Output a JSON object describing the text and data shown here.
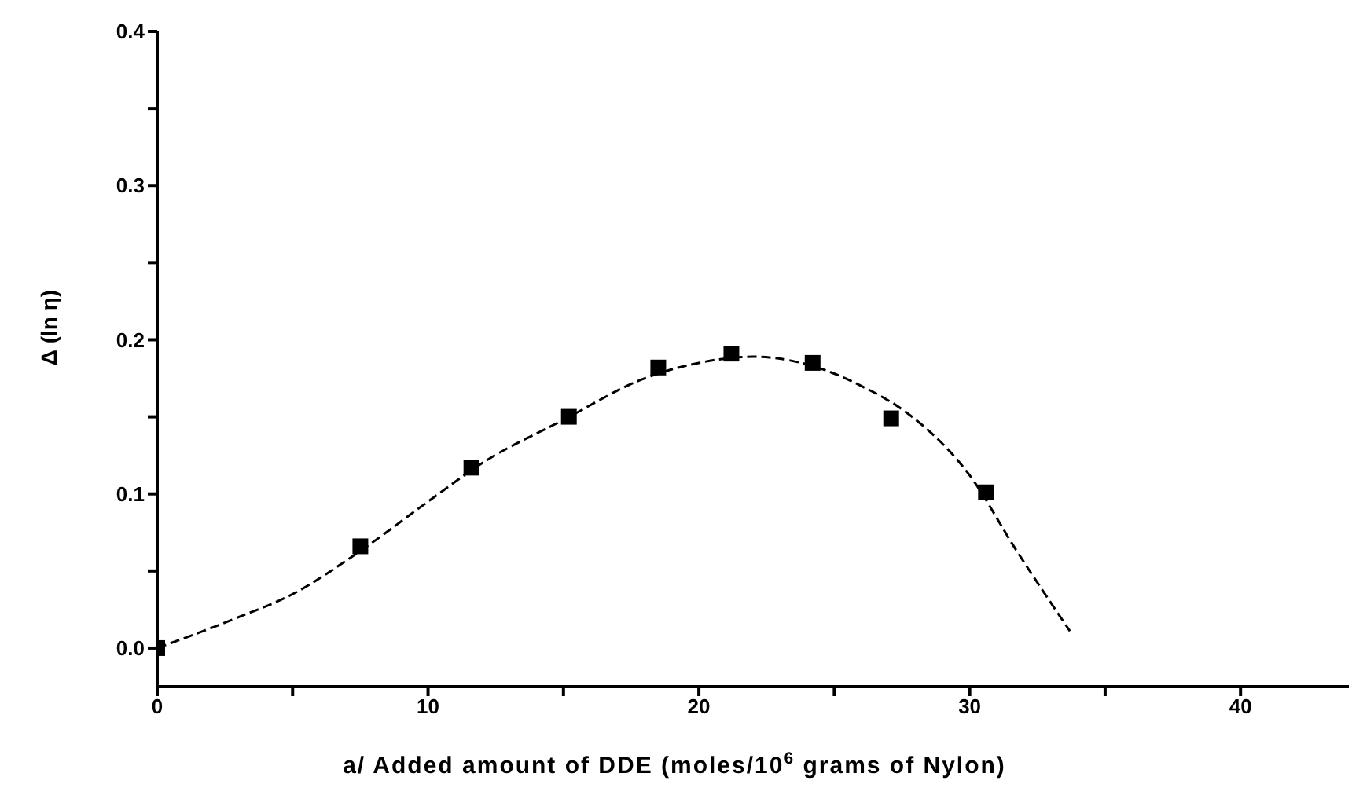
{
  "chart_data": {
    "type": "scatter",
    "xlabel": "a/ Added amount of DDE (moles/10$^{6}$ grams of Nylon)",
    "ylabel": "Δ (ln η)",
    "xlim": [
      0,
      44
    ],
    "xticks": [
      0,
      {
        "value": 5,
        "label": null
      },
      10,
      {
        "value": 15,
        "label": null
      },
      20,
      {
        "value": 25,
        "label": null
      },
      30,
      {
        "value": 35,
        "label": null
      },
      40
    ],
    "ylim": [
      -0.025,
      0.4
    ],
    "yticks": [
      {
        "value": 0,
        "label": "0.0"
      },
      {
        "value": 0.05,
        "label": null
      },
      0.1,
      {
        "value": 0.15,
        "label": null
      },
      0.2,
      {
        "value": 0.25,
        "label": null
      },
      0.3,
      {
        "value": 0.35,
        "label": null
      },
      0.4
    ],
    "grid": false,
    "legend": false,
    "series": [
      {
        "color": "#000000",
        "marker": "square",
        "x": [
          0,
          7.5,
          11.6,
          15.2,
          18.5,
          21.2,
          24.2,
          27.1,
          30.6
        ],
        "values": [
          0,
          0.066,
          0.117,
          0.15,
          0.182,
          0.191,
          0.185,
          0.149,
          0.101
        ]
      },
      {
        "type": "line",
        "color": "#000000",
        "marker": "none",
        "line_style": "dashed",
        "x": [
          0,
          3,
          5,
          7.5,
          10,
          12,
          15,
          18,
          20,
          22,
          24,
          26,
          27.8,
          30,
          31.7,
          33.7
        ],
        "values": [
          0,
          0.02,
          0.035,
          0.063,
          0.095,
          0.12,
          0.148,
          0.175,
          0.185,
          0.189,
          0.184,
          0.17,
          0.151,
          0.112,
          0.064,
          0.011
        ]
      }
    ]
  }
}
